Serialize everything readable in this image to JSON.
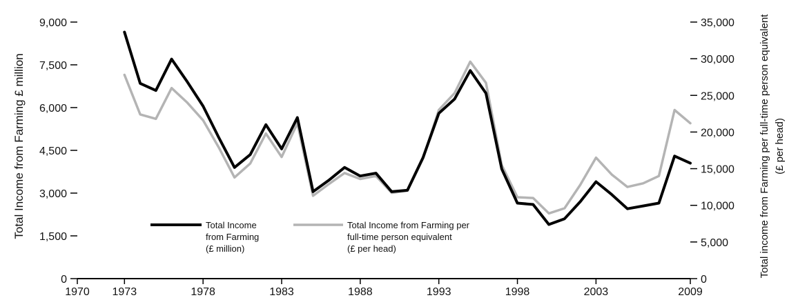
{
  "chart_data": {
    "type": "line",
    "ylabel_left": "Total Income from Farming £ million",
    "ylabel_right_line1": "Total income from Farming per full-time person equivalent",
    "ylabel_right_line2": "(£ per head)",
    "xlim": [
      1970,
      2009
    ],
    "ylim_left": [
      0,
      9000
    ],
    "ylim_right": [
      0,
      35000
    ],
    "x_ticks": [
      "1970",
      "1973",
      "1978",
      "1983",
      "1988",
      "1993",
      "1998",
      "2003",
      "2009"
    ],
    "y_ticks_left": [
      "0",
      "1,500",
      "3,000",
      "4,500",
      "6,000",
      "7,500",
      "9,000"
    ],
    "y_ticks_right": [
      "0",
      "5,000",
      "10,000",
      "15,000",
      "20,000",
      "25,000",
      "30,000",
      "35,000"
    ],
    "grid": false,
    "legend_position": "lower-left",
    "series": [
      {
        "name_lines": [
          "Total Income",
          "from Farming",
          "(£ million)"
        ],
        "axis": "left",
        "color": "#000000",
        "x": [
          1973,
          1974,
          1975,
          1976,
          1977,
          1978,
          1979,
          1980,
          1981,
          1982,
          1983,
          1984,
          1985,
          1986,
          1987,
          1988,
          1989,
          1990,
          1991,
          1992,
          1993,
          1994,
          1995,
          1996,
          1997,
          1998,
          1999,
          2000,
          2001,
          2002,
          2003,
          2004,
          2005,
          2006,
          2007,
          2008,
          2009
        ],
        "values": [
          8650,
          6850,
          6600,
          7700,
          6900,
          6050,
          4950,
          3900,
          4350,
          5400,
          4550,
          5650,
          3050,
          3450,
          3900,
          3600,
          3700,
          3050,
          3100,
          4250,
          5800,
          6300,
          7300,
          6500,
          3850,
          2650,
          2600,
          1900,
          2100,
          2700,
          3400,
          2950,
          2450,
          2550,
          2650,
          4300,
          4050
        ]
      },
      {
        "name_lines": [
          "Total Income from Farming per",
          "full-time person equivalent",
          "(£ per head)"
        ],
        "axis": "right",
        "color": "#b4b4b4",
        "x": [
          1973,
          1974,
          1975,
          1976,
          1977,
          1978,
          1979,
          1980,
          1981,
          1982,
          1983,
          1984,
          1985,
          1986,
          1987,
          1988,
          1989,
          1990,
          1991,
          1992,
          1993,
          1994,
          1995,
          1996,
          1997,
          1998,
          1999,
          2000,
          2001,
          2002,
          2003,
          2004,
          2005,
          2006,
          2007,
          2008,
          2009
        ],
        "values": [
          27800,
          22400,
          21800,
          26000,
          24000,
          21600,
          17900,
          13800,
          15700,
          19800,
          16600,
          21200,
          11300,
          12900,
          14400,
          13600,
          14000,
          11700,
          12000,
          16400,
          23000,
          25300,
          29600,
          26700,
          15500,
          11100,
          11000,
          8900,
          9600,
          12800,
          16500,
          14200,
          12500,
          13000,
          14000,
          23000,
          21200
        ]
      }
    ]
  }
}
